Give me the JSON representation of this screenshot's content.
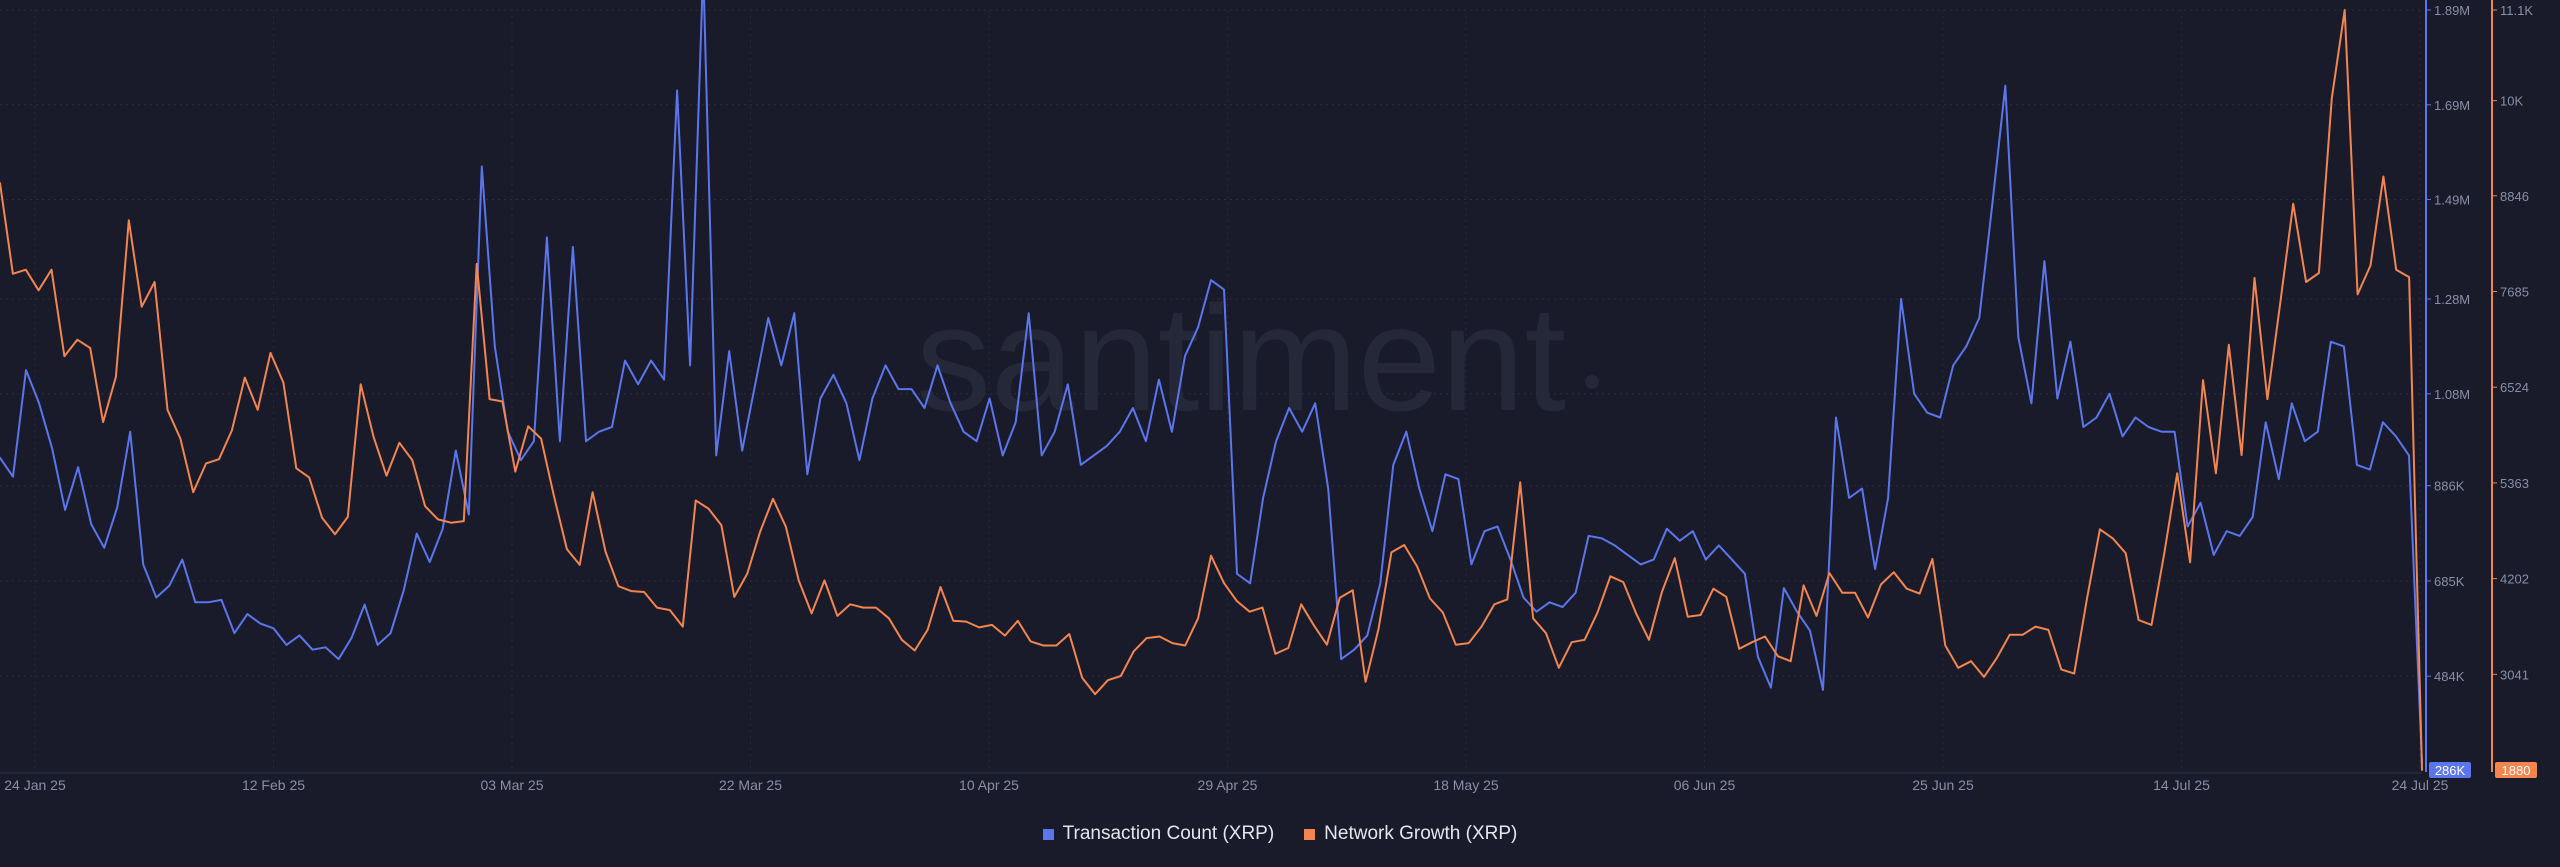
{
  "chart_data": {
    "type": "line",
    "watermark": "santiment",
    "x_tick_labels": [
      "24 Jan 25",
      "12 Feb 25",
      "03 Mar 25",
      "22 Mar 25",
      "10 Apr 25",
      "29 Apr 25",
      "18 May 25",
      "06 Jun 25",
      "25 Jun 25",
      "14 Jul 25",
      "24 Jul 25"
    ],
    "x_range": {
      "start": "24 Jan 25",
      "end": "24 Jul 25",
      "days": 181
    },
    "left_axis": {
      "name": "Transaction Count (XRP)",
      "color": "#5b76ec",
      "tick_labels": [
        "484K",
        "685K",
        "886K",
        "1.08M",
        "1.28M",
        "1.49M",
        "1.69M",
        "1.89M"
      ],
      "tick_values": [
        484000,
        685000,
        886000,
        1080000,
        1280000,
        1490000,
        1690000,
        1890000
      ],
      "min": 286000,
      "max": 1890000,
      "current_label": "286K"
    },
    "right_axis": {
      "name": "Network Growth (XRP)",
      "color": "#f3854f",
      "tick_labels": [
        "3041",
        "4202",
        "5363",
        "6524",
        "7685",
        "8846",
        "10K",
        "11.1K"
      ],
      "tick_values": [
        3041,
        4202,
        5363,
        6524,
        7685,
        8846,
        10000,
        11100
      ],
      "min": 1880,
      "max": 11100,
      "current_label": "1880"
    },
    "series": [
      {
        "name": "Transaction Count (XRP)",
        "axis": "left",
        "color": "#5b76ec",
        "values": [
          945000,
          905000,
          1130000,
          1060000,
          965000,
          835000,
          925000,
          805000,
          755000,
          840000,
          1000000,
          720000,
          650000,
          675000,
          730000,
          640000,
          640000,
          645000,
          575000,
          615000,
          595000,
          585000,
          550000,
          570000,
          540000,
          545000,
          520000,
          565000,
          635000,
          550000,
          575000,
          665000,
          785000,
          725000,
          795000,
          960000,
          825000,
          1560000,
          1180000,
          1000000,
          940000,
          980000,
          1410000,
          980000,
          1390000,
          980000,
          1000000,
          1010000,
          1150000,
          1100000,
          1150000,
          1110000,
          1720000,
          1140000,
          1980000,
          950000,
          1170000,
          960000,
          1100000,
          1240000,
          1140000,
          1250000,
          910000,
          1070000,
          1120000,
          1060000,
          940000,
          1070000,
          1140000,
          1090000,
          1090000,
          1050000,
          1140000,
          1060000,
          1000000,
          980000,
          1070000,
          950000,
          1020000,
          1250000,
          950000,
          1000000,
          1100000,
          930000,
          950000,
          970000,
          1000000,
          1050000,
          980000,
          1110000,
          1000000,
          1160000,
          1220000,
          1320000,
          1300000,
          700000,
          680000,
          860000,
          980000,
          1050000,
          1000000,
          1060000,
          880000,
          520000,
          540000,
          570000,
          680000,
          930000,
          1000000,
          880000,
          790000,
          910000,
          900000,
          720000,
          790000,
          800000,
          730000,
          650000,
          620000,
          640000,
          630000,
          660000,
          780000,
          775000,
          760000,
          740000,
          720000,
          730000,
          795000,
          770000,
          790000,
          730000,
          760000,
          730000,
          700000,
          525000,
          460000,
          670000,
          620000,
          580000,
          455000,
          1030000,
          860000,
          880000,
          710000,
          860000,
          1280000,
          1080000,
          1040000,
          1030000,
          1140000,
          1180000,
          1240000,
          1480000,
          1730000,
          1200000,
          1060000,
          1360000,
          1070000,
          1190000,
          1010000,
          1030000,
          1080000,
          990000,
          1030000,
          1010000,
          1000000,
          1000000,
          800000,
          850000,
          740000,
          790000,
          780000,
          820000,
          1020000,
          900000,
          1060000,
          980000,
          1000000,
          1190000,
          1180000,
          930000,
          920000,
          1020000,
          990000,
          950000,
          300000
        ],
        "current_label": "286K"
      },
      {
        "name": "Network Growth (XRP)",
        "axis": "right",
        "color": "#f3854f",
        "values": [
          9000,
          7900,
          7950,
          7700,
          7950,
          6900,
          7100,
          7000,
          6100,
          6650,
          8550,
          7500,
          7800,
          6250,
          5900,
          5250,
          5600,
          5650,
          6000,
          6640,
          6250,
          6940,
          6580,
          5540,
          5430,
          4940,
          4740,
          4950,
          6560,
          5920,
          5450,
          5850,
          5640,
          5080,
          4920,
          4880,
          4900,
          8020,
          6380,
          6350,
          5500,
          6050,
          5900,
          5200,
          4560,
          4370,
          5250,
          4530,
          4110,
          4050,
          4040,
          3850,
          3820,
          3620,
          5150,
          5050,
          4850,
          3980,
          4260,
          4770,
          5170,
          4830,
          4180,
          3780,
          4180,
          3750,
          3890,
          3850,
          3850,
          3720,
          3460,
          3330,
          3580,
          4100,
          3690,
          3680,
          3610,
          3640,
          3510,
          3690,
          3440,
          3390,
          3390,
          3530,
          3000,
          2800,
          2970,
          3020,
          3320,
          3480,
          3500,
          3420,
          3390,
          3720,
          4480,
          4150,
          3930,
          3800,
          3850,
          3290,
          3360,
          3890,
          3630,
          3400,
          3970,
          4060,
          2950,
          3590,
          4520,
          4610,
          4350,
          3960,
          3790,
          3400,
          3420,
          3620,
          3890,
          3950,
          5370,
          3720,
          3540,
          3120,
          3430,
          3460,
          3790,
          4230,
          4160,
          3780,
          3460,
          4040,
          4450,
          3740,
          3760,
          4080,
          3980,
          3350,
          3430,
          3500,
          3260,
          3200,
          4120,
          3750,
          4270,
          4030,
          4030,
          3730,
          4130,
          4280,
          4080,
          4020,
          4440,
          3390,
          3120,
          3200,
          3010,
          3240,
          3520,
          3520,
          3620,
          3580,
          3100,
          3050,
          3960,
          4800,
          4690,
          4510,
          3700,
          3640,
          4510,
          5480,
          4400,
          6610,
          5480,
          7040,
          5700,
          7850,
          6380,
          7550,
          8750,
          7800,
          7910,
          10030,
          11100,
          7650,
          8000,
          9080,
          7950,
          7860,
          1880
        ],
        "current_label": "1880"
      }
    ]
  },
  "legend": {
    "items": [
      {
        "label": "Transaction Count (XRP)",
        "color": "#5b76ec"
      },
      {
        "label": "Network Growth (XRP)",
        "color": "#f3854f"
      }
    ]
  }
}
